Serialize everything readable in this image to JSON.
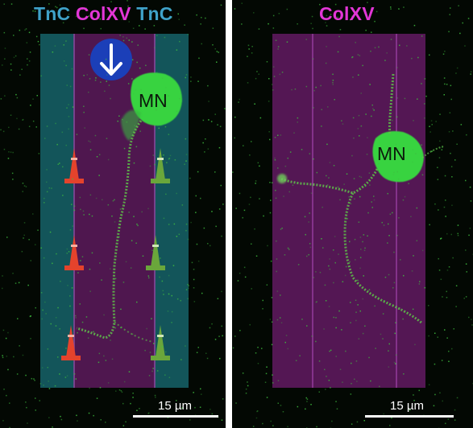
{
  "left_panel": {
    "label_segments": [
      {
        "text": "TnC",
        "color": "#3fa2c9"
      },
      {
        "text": "ColXV",
        "color": "#e236d6"
      },
      {
        "text": "TnC",
        "color": "#3fa2c9"
      }
    ],
    "neuron_label": "MN",
    "scale_bar_label": "15 µm",
    "direction_icon": "arrow-down-icon",
    "cone_icons": {
      "left_lane": "red-cone-icon",
      "right_lane": "green-cone-icon"
    }
  },
  "right_panel": {
    "label": "ColXV",
    "neuron_label": "MN",
    "scale_bar_label": "15 µm"
  },
  "colors": {
    "tnc_stripe": "#1a6f78",
    "colxv_stripe": "#5d1a5d",
    "neuron_green": "#39d33f",
    "red_cone": "#e4432c",
    "green_cone": "#6aa63b",
    "arrow_badge": "#1b3fb8"
  }
}
